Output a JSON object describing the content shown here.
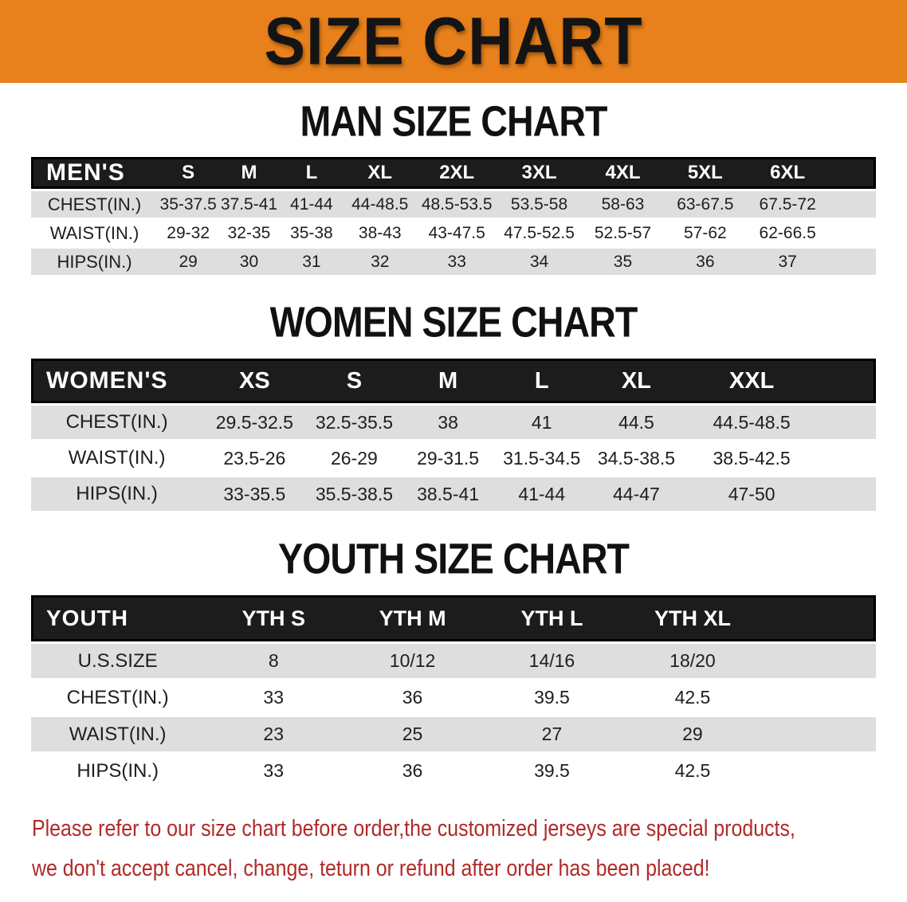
{
  "banner": {
    "title": "SIZE CHART"
  },
  "colors": {
    "banner_orange": "#e8811c",
    "header_black": "#1c1c1c",
    "stripe_gray": "#dedede",
    "disclaimer_red": "#b12a28"
  },
  "sections": [
    {
      "heading": "MAN SIZE CHART",
      "table": {
        "corner_label": "MEN'S",
        "columns": [
          "S",
          "M",
          "L",
          "XL",
          "2XL",
          "3XL",
          "4XL",
          "5XL",
          "6XL"
        ],
        "rows": [
          {
            "label": "CHEST(IN.)",
            "values": [
              "35-37.5",
              "37.5-41",
              "41-44",
              "44-48.5",
              "48.5-53.5",
              "53.5-58",
              "58-63",
              "63-67.5",
              "67.5-72"
            ]
          },
          {
            "label": "WAIST(IN.)",
            "values": [
              "29-32",
              "32-35",
              "35-38",
              "38-43",
              "43-47.5",
              "47.5-52.5",
              "52.5-57",
              "57-62",
              "62-66.5"
            ]
          },
          {
            "label": "HIPS(IN.)",
            "values": [
              "29",
              "30",
              "31",
              "32",
              "33",
              "34",
              "35",
              "36",
              "37"
            ]
          }
        ]
      }
    },
    {
      "heading": "WOMEN SIZE CHART",
      "table": {
        "corner_label": "WOMEN'S",
        "columns": [
          "XS",
          "S",
          "M",
          "L",
          "XL",
          "XXL"
        ],
        "rows": [
          {
            "label": "CHEST(IN.)",
            "values": [
              "29.5-32.5",
              "32.5-35.5",
              "38",
              "41",
              "44.5",
              "44.5-48.5"
            ]
          },
          {
            "label": "WAIST(IN.)",
            "values": [
              "23.5-26",
              "26-29",
              "29-31.5",
              "31.5-34.5",
              "34.5-38.5",
              "38.5-42.5"
            ]
          },
          {
            "label": "HIPS(IN.)",
            "values": [
              "33-35.5",
              "35.5-38.5",
              "38.5-41",
              "41-44",
              "44-47",
              "47-50"
            ]
          }
        ]
      }
    },
    {
      "heading": "YOUTH SIZE CHART",
      "table": {
        "corner_label": "YOUTH",
        "columns": [
          "YTH S",
          "YTH M",
          "YTH L",
          "YTH XL"
        ],
        "rows": [
          {
            "label": "U.S.SIZE",
            "values": [
              "8",
              "10/12",
              "14/16",
              "18/20"
            ]
          },
          {
            "label": "CHEST(IN.)",
            "values": [
              "33",
              "36",
              "39.5",
              "42.5"
            ]
          },
          {
            "label": "WAIST(IN.)",
            "values": [
              "23",
              "25",
              "27",
              "29"
            ]
          },
          {
            "label": "HIPS(IN.)",
            "values": [
              "33",
              "36",
              "39.5",
              "42.5"
            ]
          }
        ]
      }
    }
  ],
  "disclaimer": {
    "line1": "Please refer to our size chart before order,the customized jerseys are special products,",
    "line2": "we don't accept cancel, change, teturn or refund after order has been placed!"
  }
}
